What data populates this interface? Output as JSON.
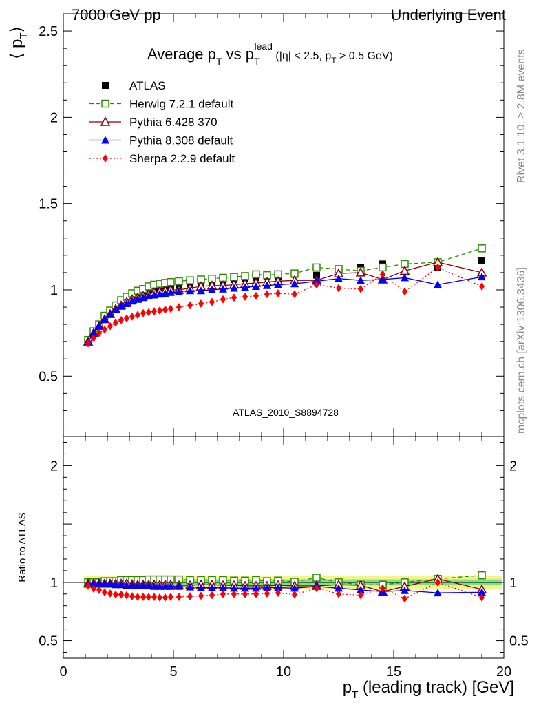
{
  "header": {
    "left": "7000 GeV pp",
    "right": "Underlying Event"
  },
  "title": {
    "part1": "Average p",
    "sub1": "T",
    "part2": " vs p",
    "sub2": "T",
    "sup2": "lead",
    "cut1": " (|η| < 2.5, p",
    "cut_sub": "T",
    "cut2": " > 0.5 GeV)"
  },
  "side_text": {
    "rivet": "Rivet 3.1.10, ≥ 2.8M events",
    "mcplots": "mcplots.cern.ch [arXiv:1306.3436]"
  },
  "analysis_label": "ATLAS_2010_S8894728",
  "colors": {
    "atlas": "#000000",
    "herwig": "#2e8b00",
    "pythia6": "#8b0000",
    "pythia8": "#0000ff",
    "sherpa": "#ff0000",
    "band_inner": "#7fe08a",
    "band_outer": "#f4f48a"
  },
  "chart_data": [
    {
      "type": "scatter",
      "title": "Average p_T vs p_T^lead (|η| < 2.5, p_T > 0.5 GeV)",
      "ylabel": "⟨ p",
      "ylabel_sub": "T",
      "ylabel_end": "⟩",
      "xlim": [
        0,
        20
      ],
      "ylim": [
        0.15,
        2.6
      ],
      "yticks": [
        "0.5",
        "1",
        "1.5",
        "2",
        "2.5"
      ],
      "x": [
        1.125,
        1.375,
        1.625,
        1.875,
        2.125,
        2.375,
        2.625,
        2.875,
        3.125,
        3.375,
        3.625,
        3.875,
        4.125,
        4.375,
        4.625,
        4.875,
        5.25,
        5.75,
        6.25,
        6.75,
        7.25,
        7.75,
        8.25,
        8.75,
        9.25,
        9.75,
        10.5,
        11.5,
        12.5,
        13.5,
        14.5,
        15.5,
        17.0,
        19.0
      ],
      "series": [
        {
          "name": "ATLAS",
          "marker": "square",
          "values": [
            0.71,
            0.76,
            0.8,
            0.84,
            0.87,
            0.9,
            0.92,
            0.94,
            0.96,
            0.975,
            0.985,
            0.995,
            1.005,
            1.01,
            1.015,
            1.02,
            1.025,
            1.035,
            1.04,
            1.045,
            1.05,
            1.06,
            1.065,
            1.07,
            1.075,
            1.075,
            1.09,
            1.085,
            1.12,
            1.13,
            1.15,
            1.15,
            1.13,
            1.17
          ]
        },
        {
          "name": "Herwig 7.2.1 default",
          "marker": "open-square",
          "values": [
            0.71,
            0.76,
            0.8,
            0.85,
            0.88,
            0.91,
            0.94,
            0.96,
            0.98,
            0.995,
            1.005,
            1.02,
            1.03,
            1.035,
            1.04,
            1.045,
            1.05,
            1.055,
            1.06,
            1.065,
            1.07,
            1.075,
            1.08,
            1.09,
            1.085,
            1.09,
            1.095,
            1.13,
            1.12,
            1.11,
            1.13,
            1.15,
            1.16,
            1.24
          ]
        },
        {
          "name": "Pythia 6.428 370",
          "marker": "open-triangle",
          "values": [
            0.7,
            0.75,
            0.79,
            0.83,
            0.86,
            0.89,
            0.91,
            0.93,
            0.945,
            0.955,
            0.965,
            0.975,
            0.985,
            0.99,
            0.995,
            1.0,
            1.0,
            1.01,
            1.02,
            1.025,
            1.025,
            1.03,
            1.035,
            1.04,
            1.045,
            1.05,
            1.055,
            1.055,
            1.095,
            1.1,
            1.06,
            1.11,
            1.16,
            1.1
          ]
        },
        {
          "name": "Pythia 8.308 default",
          "marker": "triangle",
          "values": [
            0.7,
            0.75,
            0.79,
            0.83,
            0.86,
            0.885,
            0.905,
            0.92,
            0.935,
            0.945,
            0.955,
            0.965,
            0.97,
            0.975,
            0.98,
            0.985,
            0.99,
            0.995,
            0.995,
            1.0,
            1.005,
            1.01,
            1.015,
            1.02,
            1.025,
            1.03,
            1.035,
            1.05,
            1.065,
            1.055,
            1.06,
            1.07,
            1.03,
            1.075
          ]
        },
        {
          "name": "Sherpa 2.2.9 default",
          "marker": "diamond",
          "values": [
            0.69,
            0.72,
            0.75,
            0.77,
            0.79,
            0.81,
            0.825,
            0.835,
            0.845,
            0.855,
            0.865,
            0.87,
            0.875,
            0.88,
            0.885,
            0.89,
            0.9,
            0.91,
            0.92,
            0.93,
            0.945,
            0.955,
            0.96,
            0.965,
            0.975,
            0.98,
            0.975,
            1.03,
            1.01,
            1.005,
            1.09,
            0.99,
            1.13,
            1.02
          ]
        }
      ]
    },
    {
      "type": "scatter",
      "ylabel": "Ratio to ATLAS",
      "xlabel": "p",
      "xlabel_sub": "T",
      "xlabel_end": " (leading track) [GeV]",
      "xlim": [
        0,
        20
      ],
      "ylim": [
        0.35,
        2.25
      ],
      "xticks": [
        "0",
        "5",
        "10",
        "15",
        "20"
      ],
      "yticks": [
        "0.5",
        "1",
        "2"
      ],
      "x": [
        1.125,
        1.375,
        1.625,
        1.875,
        2.125,
        2.375,
        2.625,
        2.875,
        3.125,
        3.375,
        3.625,
        3.875,
        4.125,
        4.375,
        4.625,
        4.875,
        5.25,
        5.75,
        6.25,
        6.75,
        7.25,
        7.75,
        8.25,
        8.75,
        9.25,
        9.75,
        10.5,
        11.5,
        12.5,
        13.5,
        14.5,
        15.5,
        17.0,
        19.0
      ],
      "series": [
        {
          "name": "Herwig 7.2.1 default",
          "values": [
            1.0,
            1.0,
            1.0,
            1.01,
            1.01,
            1.01,
            1.02,
            1.02,
            1.02,
            1.02,
            1.02,
            1.025,
            1.025,
            1.025,
            1.025,
            1.025,
            1.025,
            1.02,
            1.02,
            1.02,
            1.02,
            1.015,
            1.015,
            1.02,
            1.01,
            1.015,
            1.005,
            1.04,
            1.0,
            0.98,
            0.98,
            1.0,
            1.03,
            1.06
          ]
        },
        {
          "name": "Pythia 6.428 370",
          "values": [
            0.99,
            0.99,
            0.99,
            0.99,
            0.99,
            0.99,
            0.99,
            0.99,
            0.985,
            0.98,
            0.98,
            0.98,
            0.98,
            0.98,
            0.98,
            0.98,
            0.975,
            0.975,
            0.98,
            0.98,
            0.975,
            0.975,
            0.97,
            0.97,
            0.97,
            0.975,
            0.97,
            0.97,
            0.98,
            0.975,
            0.92,
            0.965,
            1.03,
            0.94
          ]
        },
        {
          "name": "Pythia 8.308 default",
          "values": [
            0.985,
            0.985,
            0.985,
            0.985,
            0.985,
            0.98,
            0.98,
            0.975,
            0.975,
            0.97,
            0.97,
            0.97,
            0.965,
            0.965,
            0.965,
            0.965,
            0.965,
            0.96,
            0.955,
            0.955,
            0.955,
            0.95,
            0.95,
            0.95,
            0.955,
            0.955,
            0.95,
            0.965,
            0.95,
            0.935,
            0.92,
            0.93,
            0.91,
            0.915
          ]
        },
        {
          "name": "Sherpa 2.2.9 default",
          "values": [
            0.97,
            0.945,
            0.935,
            0.915,
            0.905,
            0.895,
            0.895,
            0.89,
            0.88,
            0.875,
            0.875,
            0.875,
            0.875,
            0.87,
            0.87,
            0.875,
            0.875,
            0.88,
            0.885,
            0.89,
            0.9,
            0.9,
            0.9,
            0.9,
            0.905,
            0.91,
            0.895,
            0.95,
            0.9,
            0.89,
            0.95,
            0.86,
            1.0,
            0.87
          ]
        }
      ],
      "band_inner": 0.025,
      "band_outer": 0.055
    }
  ]
}
